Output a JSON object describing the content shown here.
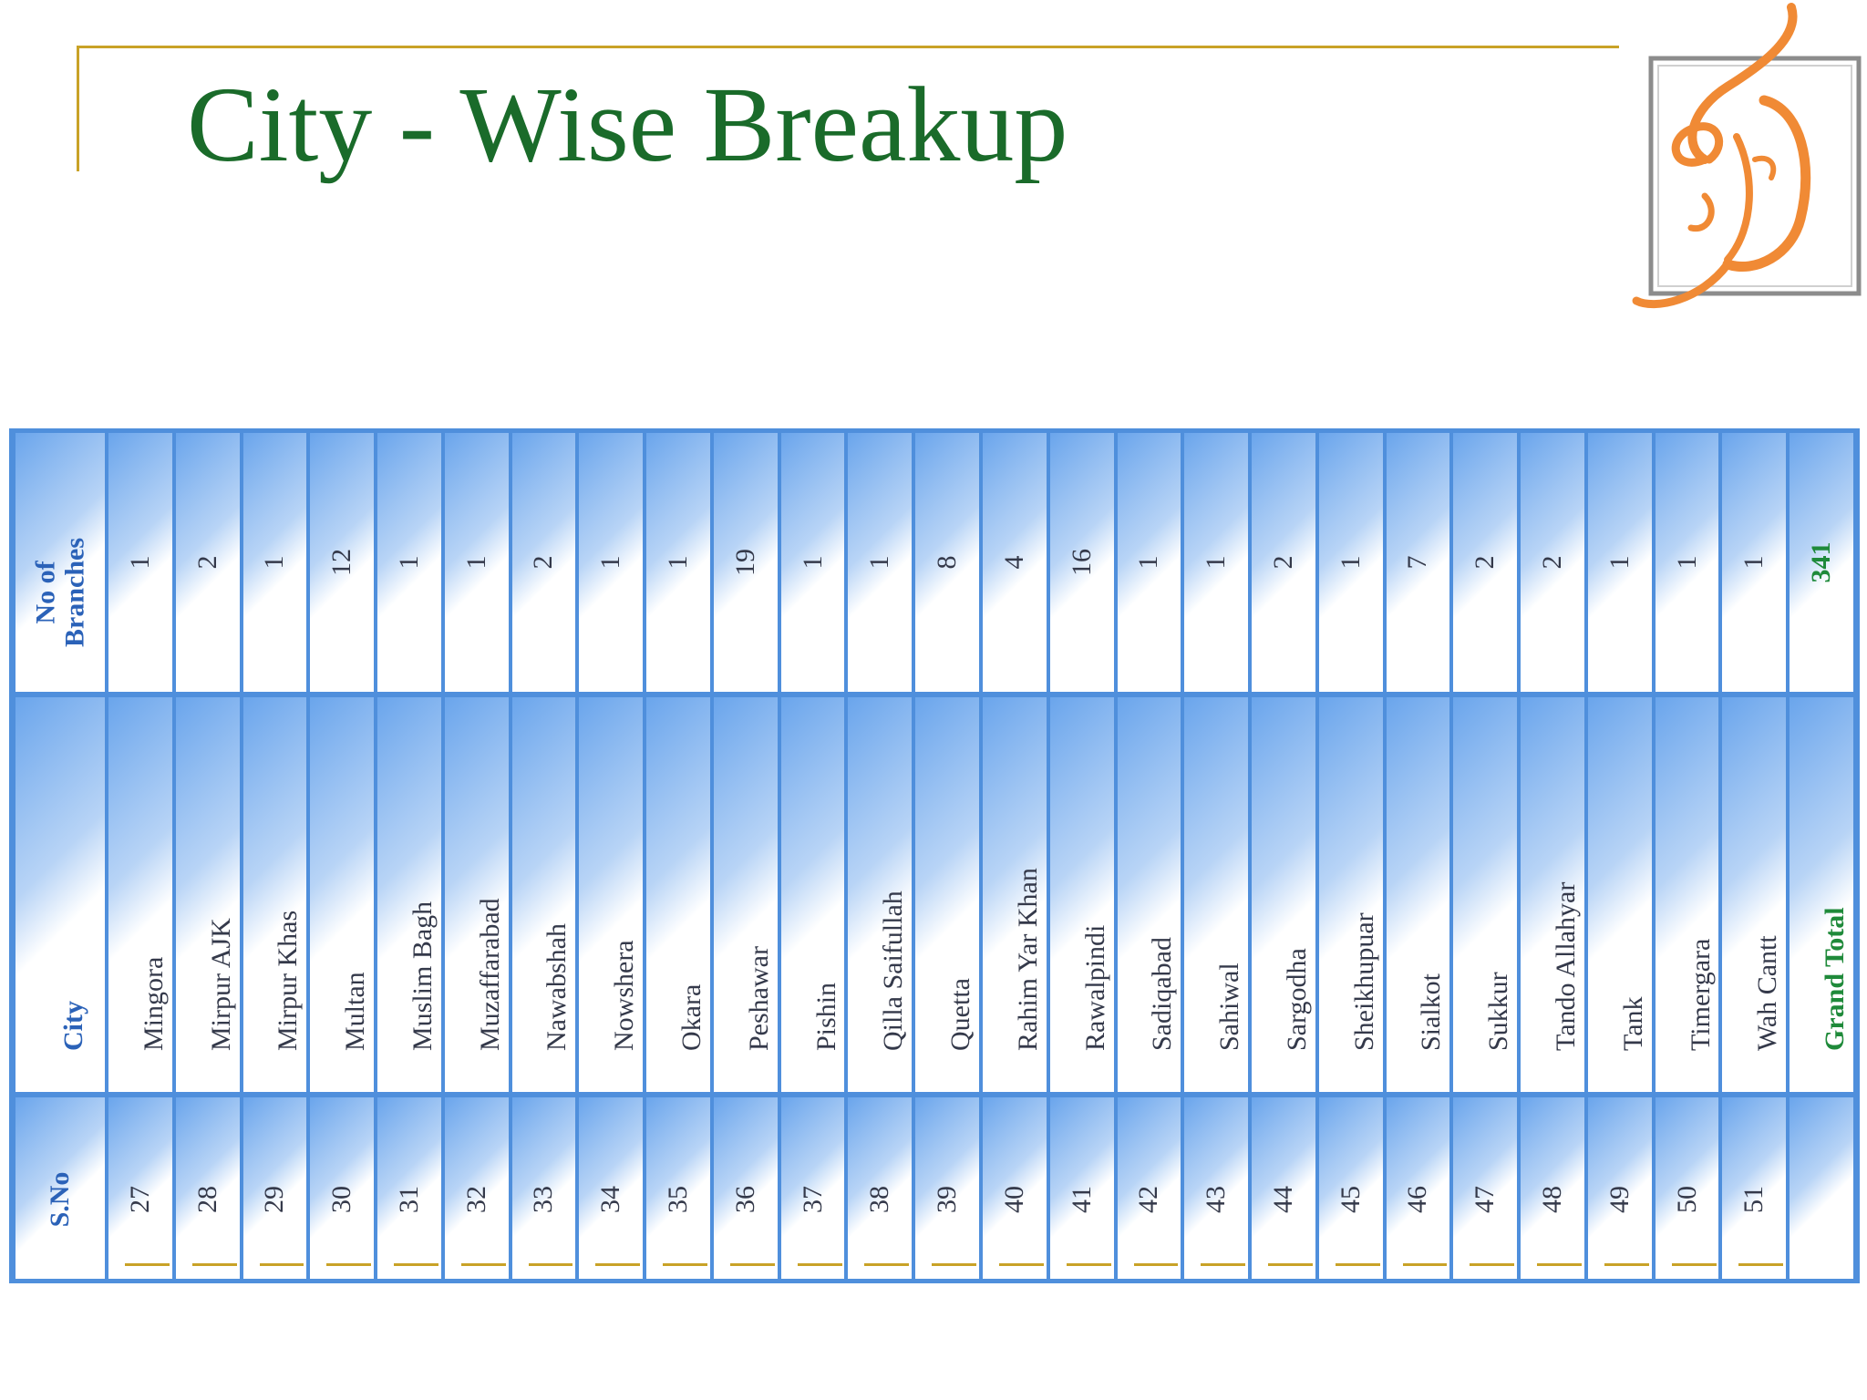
{
  "title": "City - Wise Breakup",
  "headers": {
    "sno": "S.No",
    "city": "City",
    "branches": "No of Branches"
  },
  "rows": [
    {
      "sno": "27",
      "city": "Mingora",
      "branches": "1"
    },
    {
      "sno": "28",
      "city": "Mirpur AJK",
      "branches": "2"
    },
    {
      "sno": "29",
      "city": "Mirpur Khas",
      "branches": "1"
    },
    {
      "sno": "30",
      "city": "Multan",
      "branches": "12"
    },
    {
      "sno": "31",
      "city": "Muslim Bagh",
      "branches": "1"
    },
    {
      "sno": "32",
      "city": "Muzaffarabad",
      "branches": "1"
    },
    {
      "sno": "33",
      "city": "Nawabshah",
      "branches": "2"
    },
    {
      "sno": "34",
      "city": "Nowshera",
      "branches": "1"
    },
    {
      "sno": "35",
      "city": "Okara",
      "branches": "1"
    },
    {
      "sno": "36",
      "city": "Peshawar",
      "branches": "19"
    },
    {
      "sno": "37",
      "city": "Pishin",
      "branches": "1"
    },
    {
      "sno": "38",
      "city": "Qilla Saifullah",
      "branches": "1"
    },
    {
      "sno": "39",
      "city": "Quetta",
      "branches": "8"
    },
    {
      "sno": "40",
      "city": "Rahim Yar Khan",
      "branches": "4"
    },
    {
      "sno": "41",
      "city": "Rawalpindi",
      "branches": "16"
    },
    {
      "sno": "42",
      "city": "Sadiqabad",
      "branches": "1"
    },
    {
      "sno": "43",
      "city": "Sahiwal",
      "branches": "1"
    },
    {
      "sno": "44",
      "city": "Sargodha",
      "branches": "2"
    },
    {
      "sno": "45",
      "city": "Sheikhupuar",
      "branches": "1"
    },
    {
      "sno": "46",
      "city": "Sialkot",
      "branches": "7"
    },
    {
      "sno": "47",
      "city": "Sukkur",
      "branches": "2"
    },
    {
      "sno": "48",
      "city": "Tando Allahyar",
      "branches": "2"
    },
    {
      "sno": "49",
      "city": "Tank",
      "branches": "1"
    },
    {
      "sno": "50",
      "city": "Timergara",
      "branches": "1"
    },
    {
      "sno": "51",
      "city": "Wah Cantt",
      "branches": "1"
    }
  ],
  "total": {
    "sno": "",
    "city": "Grand Total",
    "branches": "341"
  },
  "logo": {
    "icon": "calligraphy-logo-icon"
  },
  "colors": {
    "title": "#1a6b2a",
    "rule": "#c9a227",
    "border": "#4f8fdc",
    "header_text": "#2b62b8",
    "total_text": "#1f8a3a",
    "logo": "#f08a35"
  }
}
